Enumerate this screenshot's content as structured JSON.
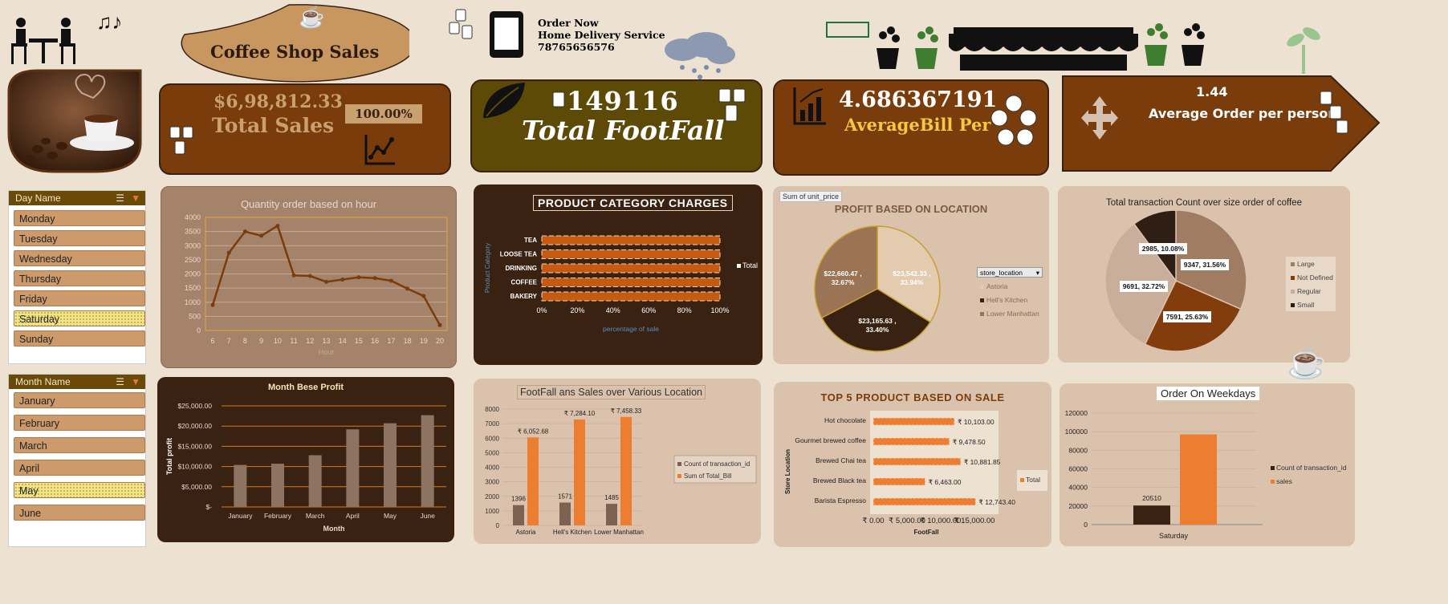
{
  "header": {
    "title": "Coffee Shop Sales",
    "order_now": "Order Now",
    "delivery": "Home Delivery Service",
    "phone": "78765656576"
  },
  "kpis": {
    "total_sales_value": "$6,98,812.33",
    "total_sales_label": "Total Sales",
    "total_sales_pct": "100.00%",
    "footfall_value": "149116",
    "footfall_label": "Total FootFall",
    "avg_bill_value": "4.686367191",
    "avg_bill_label": "AverageBill Per",
    "avg_order_value": "1.44",
    "avg_order_label": "Average Order per person"
  },
  "slicers": {
    "day": {
      "title": "Day Name",
      "items": [
        "Monday",
        "Tuesday",
        "Wednesday",
        "Thursday",
        "Friday",
        "Saturday",
        "Sunday"
      ],
      "selected": "Saturday"
    },
    "month": {
      "title": "Month Name",
      "items": [
        "January",
        "February",
        "March",
        "April",
        "May",
        "June"
      ],
      "selected": "May"
    }
  },
  "colors": {
    "brown_dark": "#3a2212",
    "brown": "#7a3c0b",
    "tan": "#cd9a6c",
    "orange": "#ed7d31",
    "olive": "#5c4a06"
  },
  "chart_data": [
    {
      "id": "hourly",
      "type": "line",
      "title": "Quantity order based on hour",
      "xlabel": "Hour",
      "x": [
        6,
        7,
        8,
        9,
        10,
        11,
        12,
        13,
        14,
        15,
        16,
        17,
        18,
        19,
        20
      ],
      "values": [
        900,
        2750,
        3500,
        3350,
        3700,
        1950,
        1930,
        1720,
        1800,
        1880,
        1850,
        1760,
        1480,
        1220,
        190
      ],
      "ylim": [
        0,
        4000
      ],
      "yticks": [
        0,
        500,
        1000,
        1500,
        2000,
        2500,
        3000,
        3500,
        4000
      ]
    },
    {
      "id": "category",
      "type": "bar",
      "orientation": "horizontal",
      "title": "PRODUCT CATEGORY CHARGES",
      "xlabel": "percentage of sale",
      "ylabel": "Product Category",
      "categories": [
        "TEA",
        "LOOSE TEA",
        "DRINKING",
        "COFFEE",
        "BAKERY"
      ],
      "values": [
        100,
        100,
        100,
        100,
        100
      ],
      "xticks": [
        "0%",
        "20%",
        "40%",
        "60%",
        "80%",
        "100%"
      ],
      "legend": [
        "Total"
      ]
    },
    {
      "id": "location",
      "type": "pie",
      "title": "PROFIT BASED ON LOCATION",
      "field_button": "Sum of unit_price",
      "filter_label": "store_location",
      "labels": [
        "Astoria",
        "Hell's Kitchen",
        "Lower Manhattan"
      ],
      "values": [
        23542.33,
        23165.63,
        22660.47
      ],
      "data_labels": [
        "$23,542.33 , 33.94%",
        "$23,165.63 , 33.40%",
        "$22,660.47 , 32.67%"
      ],
      "colors": [
        "#e3cbb0",
        "#3a2212",
        "#9a7455"
      ]
    },
    {
      "id": "size",
      "type": "pie",
      "title": "Total transaction Count over size order of coffee",
      "labels": [
        "Large",
        "Not Defined",
        "Regular",
        "Small"
      ],
      "values": [
        9347,
        7591,
        9691,
        2985
      ],
      "data_labels": [
        "9347, 31.56%",
        "7591, 25.63%",
        "9691, 32.72%",
        "2985, 10.08%"
      ],
      "colors": [
        "#a07c62",
        "#833c0b",
        "#c9ae9c",
        "#2e1e14"
      ]
    },
    {
      "id": "month",
      "type": "bar",
      "title": "Month Bese Profit",
      "xlabel": "Month",
      "ylabel": "Total profit",
      "categories": [
        "January",
        "February",
        "March",
        "April",
        "May",
        "June"
      ],
      "values": [
        10400,
        10700,
        12800,
        19200,
        20700,
        22700
      ],
      "ylim": [
        0,
        25000
      ],
      "yticks": [
        "$-",
        "$5,000.00",
        "$10,000.00",
        "$15,000.00",
        "$20,000.00",
        "$25,000.00"
      ]
    },
    {
      "id": "footfall_location",
      "type": "bar",
      "title": "FootFall ans Sales over Various Location",
      "categories": [
        "Astoria",
        "Hell's Kitchen",
        "Lower Manhattan"
      ],
      "series": [
        {
          "name": "Count of transaction_id",
          "values": [
            1396,
            1571,
            1485
          ],
          "labels": [
            "1396",
            "1571",
            "1485"
          ]
        },
        {
          "name": "Sum of Total_Bill",
          "values": [
            6052.68,
            7284.1,
            7458.33
          ],
          "labels": [
            "₹ 6,052.68",
            "₹ 7,284.10",
            "₹ 7,458.33"
          ]
        }
      ],
      "ylim": [
        0,
        8000
      ],
      "yticks": [
        0,
        1000,
        2000,
        3000,
        4000,
        5000,
        6000,
        7000,
        8000
      ]
    },
    {
      "id": "top5",
      "type": "bar",
      "orientation": "horizontal",
      "title": "TOP 5 PRODUCT BASED ON SALE",
      "xlabel": "FootFall",
      "ylabel": "Store Location",
      "categories": [
        "Hot chocolate",
        "Gourmet brewed coffee",
        "Brewed Chai tea",
        "Brewed Black tea",
        "Barista Espresso"
      ],
      "values": [
        10103.0,
        9478.5,
        10881.85,
        6463.0,
        12743.4
      ],
      "labels": [
        "₹ 10,103.00",
        "₹ 9,478.50",
        "₹ 10,881.85",
        "₹ 6,463.00",
        "₹ 12,743.40"
      ],
      "xticks": [
        "₹ 0.00",
        "₹ 5,000.00",
        "₹ 10,000.00",
        "₹ 15,000.00"
      ],
      "xlim": [
        0,
        15000
      ],
      "legend": [
        "Total"
      ]
    },
    {
      "id": "weekday",
      "type": "bar",
      "title": "Order On  Weekdays",
      "categories": [
        "Saturday"
      ],
      "series": [
        {
          "name": "Count of transaction_id",
          "values": [
            20510
          ],
          "label": "20510"
        },
        {
          "name": "sales",
          "values": [
            97000
          ]
        }
      ],
      "ylim": [
        0,
        120000
      ],
      "yticks": [
        0,
        20000,
        40000,
        60000,
        80000,
        100000,
        120000
      ]
    }
  ]
}
